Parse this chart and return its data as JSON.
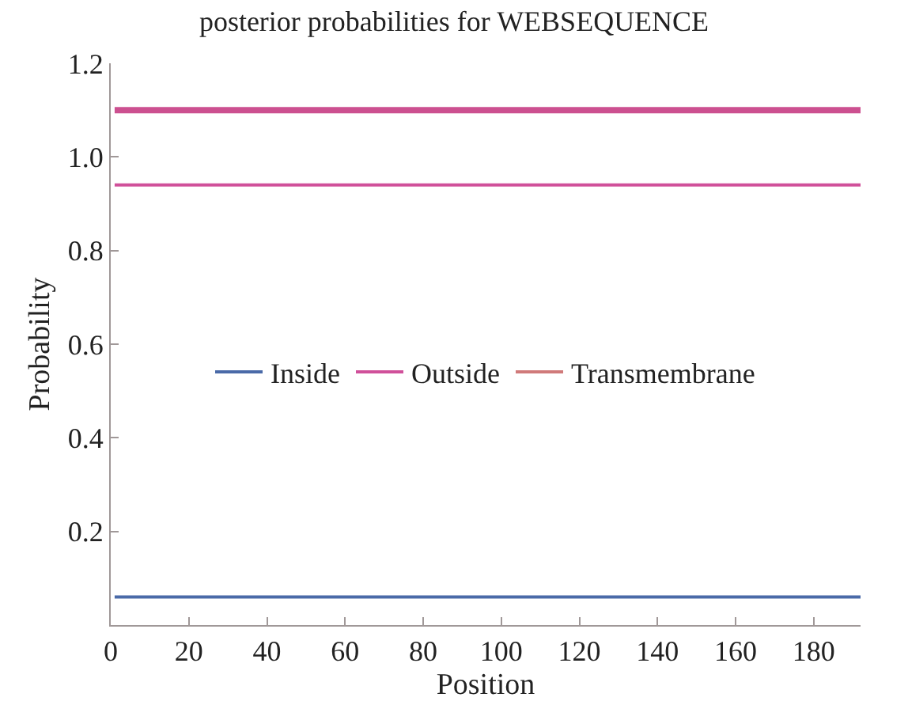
{
  "chart_data": {
    "type": "line",
    "title": "posterior probabilities for WEBSEQUENCE",
    "xlabel": "Position",
    "ylabel": "Probability",
    "x": [
      1,
      192
    ],
    "series": [
      {
        "name": "Inside",
        "color": "#4a6aa8",
        "values": [
          0.06,
          0.06
        ]
      },
      {
        "name": "Outside",
        "color": "#d0509a",
        "values": [
          0.94,
          0.94
        ]
      },
      {
        "name": "Transmembrane",
        "color": "#d07a7a",
        "values": [
          null,
          null
        ]
      },
      {
        "color": "#cc5090",
        "values": [
          1.1,
          1.1
        ]
      }
    ],
    "xlim": [
      0,
      192
    ],
    "xticks": [
      0,
      20,
      40,
      60,
      80,
      100,
      120,
      140,
      160,
      180
    ],
    "ylim": [
      0,
      1.2
    ],
    "yticks": [
      0.2,
      0.4,
      0.6,
      0.8,
      {
        "value": 1,
        "label": "1.0"
      },
      1.2
    ],
    "legend": "center",
    "marker": "none",
    "line_style": "solid"
  }
}
